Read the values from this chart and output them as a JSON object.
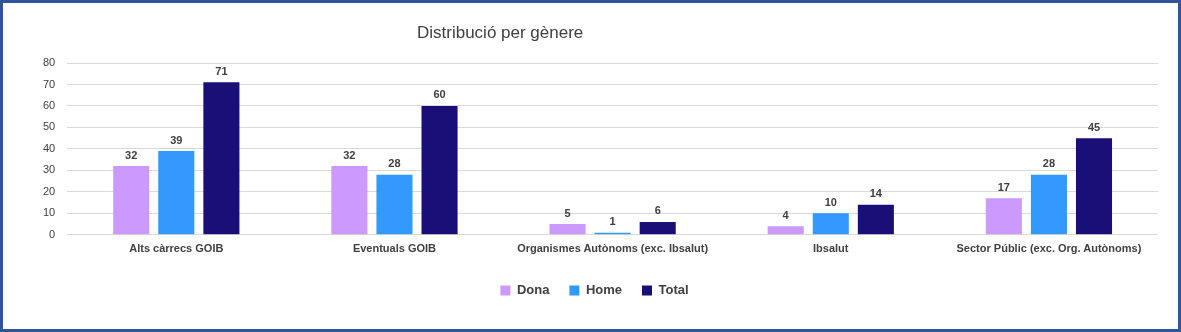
{
  "chart_data": {
    "type": "bar",
    "title": "Distribució per gènere",
    "categories": [
      "Alts càrrecs GOIB",
      "Eventuals GOIB",
      "Organismes Autònoms (exc. Ibsalut)",
      "Ibsalut",
      "Sector Públic (exc. Org. Autònoms)"
    ],
    "series": [
      {
        "name": "Dona",
        "color": "#cc99ff",
        "values": [
          32,
          32,
          5,
          4,
          17
        ]
      },
      {
        "name": "Home",
        "color": "#3399ff",
        "values": [
          39,
          28,
          1,
          10,
          28
        ]
      },
      {
        "name": "Total",
        "color": "#1a0f77",
        "values": [
          71,
          60,
          6,
          14,
          45
        ]
      }
    ],
    "ylim": [
      0,
      80
    ],
    "yticks": [
      0,
      10,
      20,
      30,
      40,
      50,
      60,
      70,
      80
    ],
    "grid": "y",
    "legend": "bottom",
    "data_labels": true
  }
}
